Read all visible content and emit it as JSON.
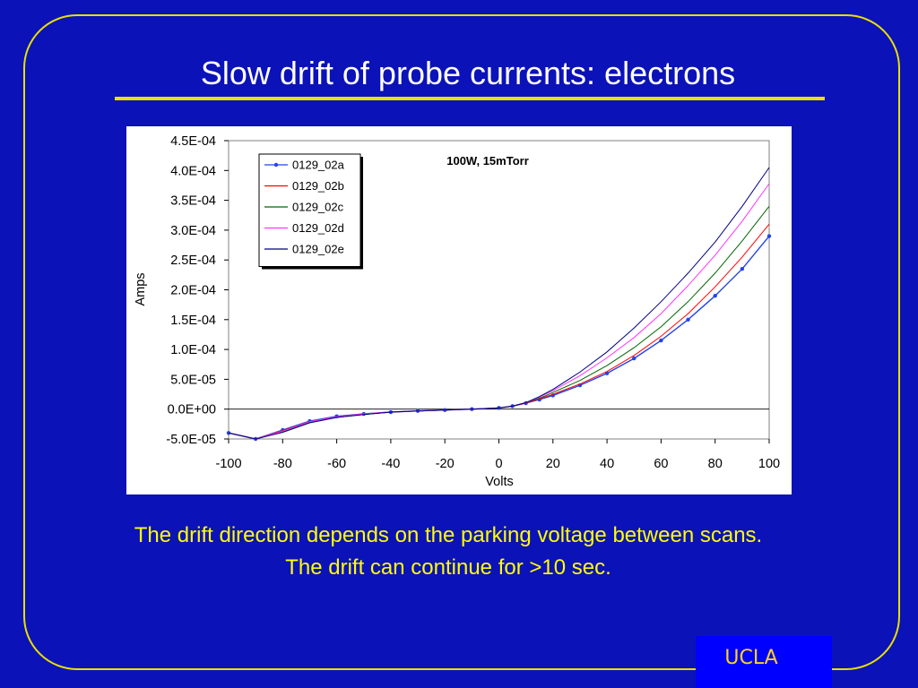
{
  "slide": {
    "title": "Slow drift of probe currents: electrons",
    "caption_line1": "The drift direction depends on the parking voltage between scans.",
    "caption_line2": "The drift can continue for >10 sec.",
    "logo_text": "UCLA",
    "colors": {
      "background": "#0B12B8",
      "accent_yellow": "#E8E000",
      "caption": "#FFFF00",
      "logo": "#FFD21E"
    }
  },
  "chart_data": {
    "type": "line",
    "title": "",
    "annotation": "100W, 15mTorr",
    "xlabel": "Volts",
    "ylabel": "Amps",
    "xlim": [
      -100,
      100
    ],
    "ylim": [
      -5e-05,
      0.00045
    ],
    "x_ticks": [
      "-100",
      "-80",
      "-60",
      "-40",
      "-20",
      "0",
      "20",
      "40",
      "60",
      "80",
      "100"
    ],
    "y_ticks": [
      "-5.0E-05",
      "0.0E+00",
      "5.0E-05",
      "1.0E-04",
      "1.5E-04",
      "2.0E-04",
      "2.5E-04",
      "3.0E-04",
      "3.5E-04",
      "4.0E-04",
      "4.5E-04"
    ],
    "grid": false,
    "legend_position": "top-left",
    "x": [
      -100,
      -90,
      -80,
      -70,
      -60,
      -50,
      -40,
      -30,
      -20,
      -10,
      0,
      5,
      10,
      15,
      20,
      30,
      40,
      50,
      60,
      70,
      80,
      90,
      100
    ],
    "series": [
      {
        "name": "0129_02a",
        "color": "#2244EE",
        "marker": true,
        "values": [
          -4e-05,
          -5e-05,
          -3.5e-05,
          -2e-05,
          -1.2e-05,
          -8e-06,
          -5e-06,
          -3e-06,
          -1.5e-06,
          0,
          2e-06,
          5e-06,
          1e-05,
          1.6e-05,
          2.3e-05,
          4e-05,
          6e-05,
          8.5e-05,
          0.000115,
          0.00015,
          0.00019,
          0.000235,
          0.00029
        ]
      },
      {
        "name": "0129_02b",
        "color": "#FF0000",
        "marker": false,
        "values": [
          -4e-05,
          -5e-05,
          -3.6e-05,
          -2.1e-05,
          -1.3e-05,
          -8e-06,
          -5e-06,
          -3e-06,
          -1.5e-06,
          0,
          2e-06,
          5e-06,
          1e-05,
          1.7e-05,
          2.5e-05,
          4.2e-05,
          6.3e-05,
          9e-05,
          0.000122,
          0.00016,
          0.000205,
          0.000255,
          0.00031
        ]
      },
      {
        "name": "0129_02c",
        "color": "#006600",
        "marker": false,
        "values": [
          -4e-05,
          -5e-05,
          -3.8e-05,
          -2.2e-05,
          -1.4e-05,
          -9e-06,
          -5e-06,
          -3e-06,
          -1.5e-06,
          0,
          2e-06,
          5e-06,
          1.1e-05,
          1.8e-05,
          2.8e-05,
          4.8e-05,
          7.3e-05,
          0.000103,
          0.000138,
          0.00018,
          0.000228,
          0.000282,
          0.00034
        ]
      },
      {
        "name": "0129_02d",
        "color": "#FF33FF",
        "marker": false,
        "values": [
          -4e-05,
          -5e-05,
          -3.7e-05,
          -2.1e-05,
          -1.3e-05,
          -8e-06,
          -5e-06,
          -3e-06,
          -1.5e-06,
          0,
          2e-06,
          5e-06,
          1.1e-05,
          2e-05,
          3.1e-05,
          5.6e-05,
          8.6e-05,
          0.00012,
          0.00016,
          0.000207,
          0.000258,
          0.000315,
          0.000378
        ]
      },
      {
        "name": "0129_02e",
        "color": "#000080",
        "marker": false,
        "values": [
          -4e-05,
          -5e-05,
          -3.9e-05,
          -2.3e-05,
          -1.4e-05,
          -9e-06,
          -5e-06,
          -3e-06,
          -1.5e-06,
          0,
          2e-06,
          5e-06,
          1.1e-05,
          2.1e-05,
          3.3e-05,
          6.2e-05,
          9.6e-05,
          0.000136,
          0.00018,
          0.000228,
          0.00028,
          0.00034,
          0.000405
        ]
      }
    ]
  }
}
